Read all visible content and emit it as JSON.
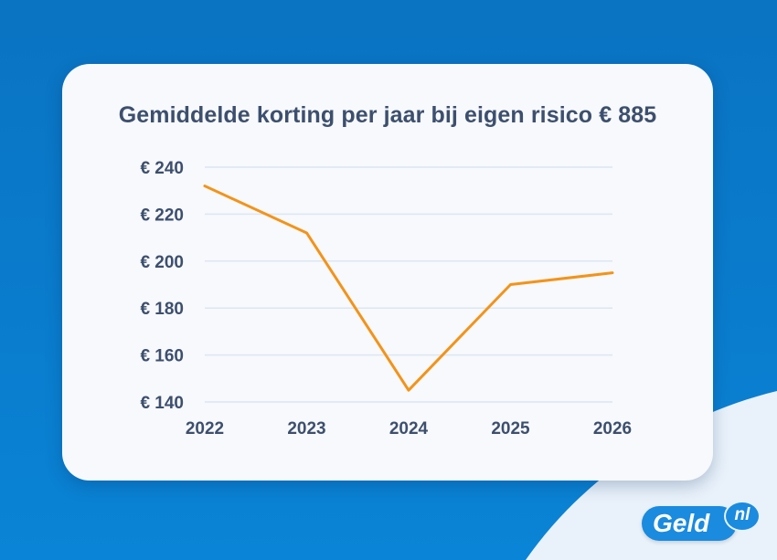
{
  "chart_data": {
    "type": "line",
    "title": "Gemiddelde korting per jaar bij eigen risico € 885",
    "xlabel": "",
    "ylabel": "",
    "categories": [
      "2022",
      "2023",
      "2024",
      "2025",
      "2026"
    ],
    "series": [
      {
        "values": [
          232,
          212,
          145,
          190,
          195
        ],
        "color": "#f39319"
      }
    ],
    "ylim": [
      140,
      240
    ],
    "yticks": [
      240,
      220,
      200,
      180,
      160,
      140
    ],
    "ytick_labels": [
      "€ 240",
      "€ 220",
      "€ 200",
      "€ 180",
      "€ 160",
      "€ 140"
    ],
    "grid": true,
    "gridColor": "#dce6f3"
  },
  "logo": {
    "main": "Geld",
    "badge": "nl"
  },
  "colors": {
    "background": "#0a7ccd",
    "card": "#f7f9fc",
    "text": "#3d4f6e",
    "accent": "#1a8bdf"
  }
}
